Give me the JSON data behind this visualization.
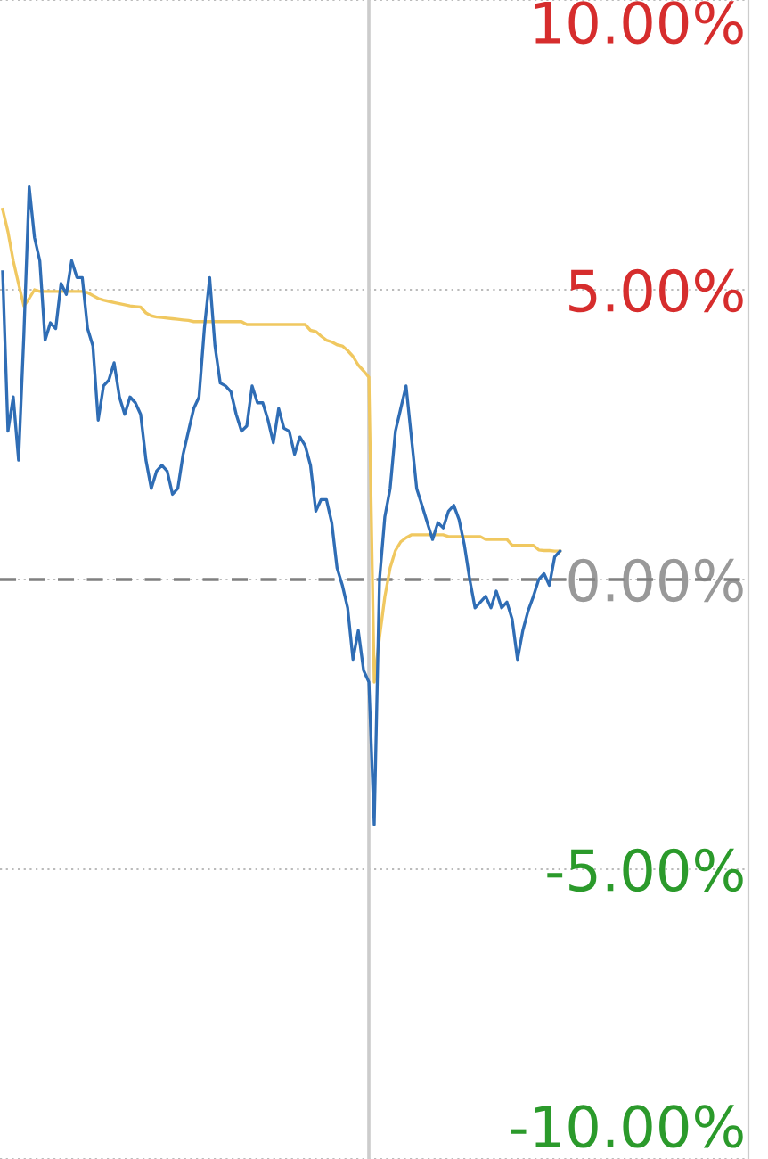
{
  "chart_data": {
    "type": "line",
    "categories": [
      null,
      null,
      null,
      null,
      null,
      null,
      null,
      null,
      null,
      null,
      null,
      null,
      null,
      null,
      null,
      null,
      null,
      null,
      null,
      null,
      null,
      null,
      null,
      null,
      null,
      null,
      null,
      null,
      null,
      null,
      null,
      null,
      null,
      null,
      null,
      null,
      null,
      null,
      null,
      null,
      null,
      null,
      null,
      null,
      null,
      null,
      null,
      null,
      null,
      null,
      null,
      null,
      null,
      null,
      null,
      null,
      null,
      null,
      null,
      null,
      null,
      null,
      null,
      null,
      null,
      null,
      null,
      null,
      null,
      null,
      null,
      null,
      null,
      null,
      null,
      null,
      null,
      null,
      null,
      null,
      null,
      null,
      null,
      null,
      null,
      null,
      null,
      null,
      null,
      null,
      null,
      null,
      null,
      null,
      null,
      null,
      null,
      null,
      null,
      null,
      null,
      null,
      null,
      null,
      null,
      null,
      null,
      null,
      null,
      null,
      null,
      null,
      null,
      null,
      null,
      null,
      null,
      null,
      null,
      null,
      null,
      null,
      null,
      null,
      null,
      null,
      null,
      null,
      null,
      null,
      null,
      null,
      null,
      null,
      null,
      null,
      null,
      null,
      null,
      null,
      null
    ],
    "series": [
      {
        "color": "#f0c860",
        "values": [
          6.39,
          6.0,
          5.5,
          5.1,
          4.72,
          4.85,
          5.0,
          4.97,
          4.97,
          4.97,
          4.97,
          4.97,
          4.97,
          4.97,
          4.97,
          4.97,
          4.95,
          4.9,
          4.85,
          4.82,
          4.8,
          4.78,
          4.76,
          4.74,
          4.72,
          4.71,
          4.7,
          4.6,
          4.55,
          4.53,
          4.52,
          4.51,
          4.5,
          4.49,
          4.48,
          4.47,
          4.45,
          4.45,
          4.45,
          4.45,
          4.45,
          4.45,
          4.45,
          4.45,
          4.45,
          4.45,
          4.4,
          4.4,
          4.4,
          4.4,
          4.4,
          4.4,
          4.4,
          4.4,
          4.4,
          4.4,
          4.4,
          4.4,
          4.3,
          4.28,
          4.2,
          4.13,
          4.1,
          4.05,
          4.03,
          3.95,
          3.85,
          3.7,
          3.6,
          3.49,
          -1.77,
          -1.0,
          -0.3,
          0.2,
          0.5,
          0.65,
          0.72,
          0.77,
          0.77,
          0.77,
          0.77,
          0.77,
          0.77,
          0.77,
          0.74,
          0.74,
          0.74,
          0.74,
          0.74,
          0.74,
          0.74,
          0.69,
          0.69,
          0.69,
          0.69,
          0.69,
          0.59,
          0.59,
          0.59,
          0.59,
          0.59,
          0.51,
          0.5,
          0.5,
          0.49,
          0.49,
          null,
          null,
          null,
          null,
          null,
          null,
          null,
          null,
          null,
          null,
          null,
          null,
          null,
          null,
          null,
          null,
          null,
          null,
          null,
          null,
          null,
          null,
          null,
          null,
          null,
          null,
          null,
          null,
          null,
          null,
          null,
          null,
          null,
          null,
          null
        ]
      },
      {
        "color": "#2f6db5",
        "values": [
          5.31,
          2.56,
          3.15,
          2.06,
          4.23,
          6.78,
          5.9,
          5.5,
          4.13,
          4.43,
          4.33,
          5.11,
          4.92,
          5.5,
          5.21,
          5.21,
          4.33,
          4.03,
          2.75,
          3.34,
          3.44,
          3.74,
          3.15,
          2.85,
          3.15,
          3.05,
          2.85,
          2.06,
          1.57,
          1.87,
          1.97,
          1.87,
          1.47,
          1.57,
          2.16,
          2.56,
          2.95,
          3.15,
          4.33,
          5.21,
          4.03,
          3.39,
          3.34,
          3.24,
          2.85,
          2.56,
          2.65,
          3.34,
          3.05,
          3.05,
          2.75,
          2.36,
          2.95,
          2.61,
          2.56,
          2.16,
          2.46,
          2.31,
          1.97,
          1.18,
          1.38,
          1.38,
          0.98,
          0.2,
          -0.1,
          -0.49,
          -1.38,
          -0.88,
          -1.57,
          -1.77,
          -4.23,
          0.0,
          1.08,
          1.57,
          2.56,
          2.95,
          3.34,
          2.46,
          1.57,
          1.28,
          0.98,
          0.69,
          0.98,
          0.89,
          1.18,
          1.28,
          1.03,
          0.59,
          0.0,
          -0.49,
          -0.39,
          -0.29,
          -0.49,
          -0.2,
          -0.49,
          -0.39,
          -0.69,
          -1.38,
          -0.88,
          -0.54,
          -0.29,
          0.0,
          0.1,
          -0.1,
          0.39,
          0.49,
          null,
          null,
          null,
          null,
          null,
          null,
          null,
          null,
          null,
          null,
          null,
          null,
          null,
          null,
          null,
          null,
          null,
          null,
          null,
          null,
          null,
          null,
          null,
          null,
          null,
          null,
          null,
          null,
          null,
          null,
          null,
          null,
          null,
          null,
          null
        ]
      }
    ],
    "ylim": [
      -10,
      10
    ],
    "yticks": [
      {
        "value": 10,
        "label": "10.00%"
      },
      {
        "value": 5,
        "label": "5.00%"
      },
      {
        "value": 0,
        "label": "0.00%"
      },
      {
        "value": -5,
        "label": "-5.00%"
      },
      {
        "value": -10,
        "label": "-10.00%"
      }
    ],
    "grid": "y",
    "ref_lines": [
      {
        "axis": "y",
        "value": 0,
        "color": "#808080",
        "line_style": "dashed"
      }
    ],
    "tick_labels": "y"
  }
}
